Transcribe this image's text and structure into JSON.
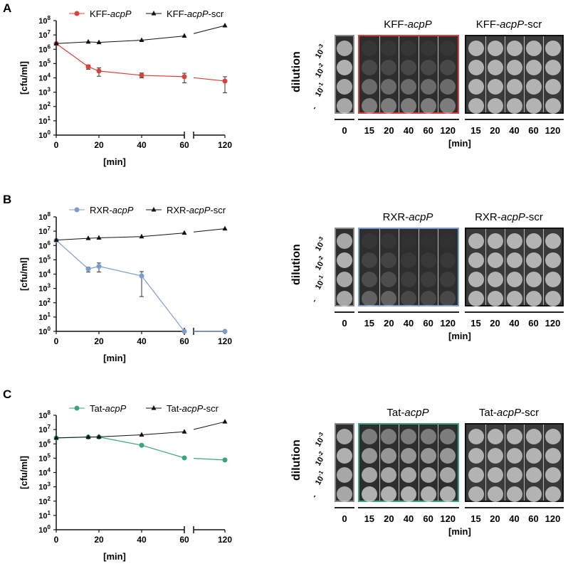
{
  "panels": [
    {
      "label": "A",
      "plate_titles": [
        "KFF-",
        "acpP",
        "",
        "KFF-",
        "acpP",
        "-scr"
      ],
      "accent": "#d9403a",
      "frame_dark": "#111111",
      "dilution_label": "dilution",
      "dilutions": [
        "10-3",
        "10-2",
        "10-1",
        "-"
      ],
      "times_left": [
        "0"
      ],
      "times_mid": [
        "15",
        "20",
        "40",
        "60",
        "120"
      ],
      "times_right": [
        "15",
        "20",
        "40",
        "60",
        "120"
      ],
      "min_label": "[min]"
    },
    {
      "label": "B",
      "plate_titles": [
        "RXR-",
        "acpP",
        "",
        "RXR-",
        "acpP",
        "-scr"
      ],
      "accent": "#7c9ccc",
      "frame_dark": "#111111",
      "dilution_label": "dilution",
      "dilutions": [
        "10-3",
        "10-2",
        "10-1",
        "-"
      ],
      "times_left": [
        "0"
      ],
      "times_mid": [
        "15",
        "20",
        "40",
        "60",
        "120"
      ],
      "times_right": [
        "15",
        "20",
        "40",
        "60",
        "120"
      ],
      "min_label": "[min]"
    },
    {
      "label": "C",
      "plate_titles": [
        "Tat-",
        "acpP",
        "",
        "Tat-",
        "acpP",
        "-scr"
      ],
      "accent": "#3aa57a",
      "frame_dark": "#111111",
      "dilution_label": "dilution",
      "dilutions": [
        "10-3",
        "10-2",
        "10-1",
        "-"
      ],
      "times_left": [
        "0"
      ],
      "times_mid": [
        "15",
        "20",
        "40",
        "60",
        "120"
      ],
      "times_right": [
        "15",
        "20",
        "40",
        "60",
        "120"
      ],
      "min_label": "[min]"
    }
  ],
  "chart_data": [
    {
      "type": "line",
      "title": "",
      "xlabel": "[min]",
      "ylabel": "[cfu/ml]",
      "yscale": "log",
      "ylim": [
        1,
        100000000
      ],
      "x": [
        0,
        15,
        20,
        40,
        60,
        120
      ],
      "xticks": [
        "0",
        "20",
        "40",
        "60",
        "120"
      ],
      "yticks": [
        "10",
        "10",
        "10",
        "10",
        "10",
        "10",
        "10",
        "10",
        "10"
      ],
      "ytick_exp": [
        "0",
        "1",
        "2",
        "3",
        "4",
        "5",
        "6",
        "7",
        "8"
      ],
      "axis_break": "between 60 and 120",
      "legend": "top",
      "series": [
        {
          "name_pre": "KFF-",
          "name_it": "acpP",
          "name_post": "",
          "color": "#d9403a",
          "marker": "circle",
          "values": [
            2500000,
            60000,
            30000,
            15000,
            12000,
            6000
          ],
          "err_low": [
            null,
            40000,
            13000,
            10000,
            4500,
            900
          ],
          "err_high": [
            null,
            80000,
            50000,
            22000,
            21000,
            12000
          ]
        },
        {
          "name_pre": "KFF-",
          "name_it": "acpP",
          "name_post": "-scr",
          "color": "#111111",
          "marker": "triangle",
          "values": [
            2500000,
            3300000,
            3000000,
            4300000,
            8500000,
            45000000
          ]
        }
      ]
    },
    {
      "type": "line",
      "title": "",
      "xlabel": "[min]",
      "ylabel": "[cfu/ml]",
      "yscale": "log",
      "ylim": [
        1,
        100000000
      ],
      "x": [
        0,
        15,
        20,
        40,
        60,
        120
      ],
      "xticks": [
        "0",
        "20",
        "40",
        "60",
        "120"
      ],
      "yticks": [
        "10",
        "10",
        "10",
        "10",
        "10",
        "10",
        "10",
        "10",
        "10"
      ],
      "ytick_exp": [
        "0",
        "1",
        "2",
        "3",
        "4",
        "5",
        "6",
        "7",
        "8"
      ],
      "axis_break": "between 60 and 120",
      "legend": "top",
      "series": [
        {
          "name_pre": "RXR-",
          "name_it": "acpP",
          "name_post": "",
          "color": "#7c9ccc",
          "marker": "circle",
          "values": [
            2300000,
            23000,
            35000,
            7500,
            1,
            1
          ],
          "err_low": [
            null,
            14000,
            14000,
            270,
            null,
            null
          ],
          "err_high": [
            null,
            30000,
            60000,
            15000,
            null,
            null
          ]
        },
        {
          "name_pre": "RXR-",
          "name_it": "acpP",
          "name_post": "-scr",
          "color": "#111111",
          "marker": "triangle",
          "values": [
            2400000,
            3200000,
            3400000,
            4200000,
            7500000,
            15000000
          ]
        }
      ]
    },
    {
      "type": "line",
      "title": "",
      "xlabel": "[min]",
      "ylabel": "[cfu/ml]",
      "yscale": "log",
      "ylim": [
        1,
        100000000
      ],
      "x": [
        0,
        15,
        20,
        40,
        60,
        120
      ],
      "xticks": [
        "0",
        "20",
        "40",
        "60",
        "120"
      ],
      "yticks": [
        "10",
        "10",
        "10",
        "10",
        "10",
        "10",
        "10",
        "10",
        "10"
      ],
      "ytick_exp": [
        "0",
        "1",
        "2",
        "3",
        "4",
        "5",
        "6",
        "7",
        "8"
      ],
      "axis_break": "between 60 and 120",
      "legend": "top",
      "series": [
        {
          "name_pre": "Tat-",
          "name_it": "acpP",
          "name_post": "",
          "color": "#3aa57a",
          "marker": "circle",
          "values": [
            2600000,
            3000000,
            3000000,
            800000,
            105000,
            75000
          ]
        },
        {
          "name_pre": "Tat-",
          "name_it": "acpP",
          "name_post": "-scr",
          "color": "#111111",
          "marker": "triangle",
          "values": [
            2600000,
            3000000,
            3100000,
            4300000,
            7000000,
            35000000
          ]
        }
      ]
    }
  ]
}
